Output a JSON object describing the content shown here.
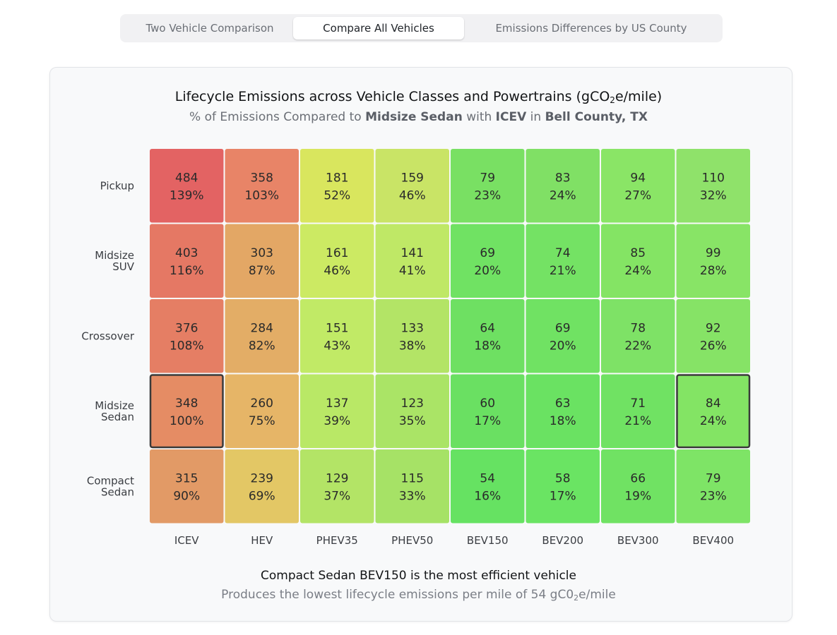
{
  "tabs": [
    {
      "label": "Two Vehicle Comparison",
      "active": false
    },
    {
      "label": "Compare All Vehicles",
      "active": true
    },
    {
      "label": "Emissions Differences by US County",
      "active": false
    }
  ],
  "header": {
    "title_main": "Lifecycle Emissions across Vehicle Classes and Powertrains (gCO",
    "title_sub": "2",
    "title_tail": "e/mile)",
    "subtitle_prefix": "% of Emissions Compared to ",
    "baseline_class": "Midsize Sedan",
    "subtitle_with": " with ",
    "baseline_powertrain": "ICEV",
    "subtitle_in": " in ",
    "county": "Bell County, TX"
  },
  "summary": {
    "headline": "Compact Sedan BEV150 is the most efficient vehicle",
    "detail_prefix": "Produces the lowest lifecycle emissions per mile of 54 gC0",
    "detail_sub": "2",
    "detail_suffix": "e/mile"
  },
  "chart_data": {
    "type": "heatmap",
    "title": "Lifecycle Emissions across Vehicle Classes and Powertrains (gCO2e/mile)",
    "subtitle": "% of Emissions Compared to Midsize Sedan with ICEV in Bell County, TX",
    "columns": [
      "ICEV",
      "HEV",
      "PHEV35",
      "PHEV50",
      "BEV150",
      "BEV200",
      "BEV300",
      "BEV400"
    ],
    "rows": [
      [
        "Pickup"
      ],
      [
        "Midsize",
        "SUV"
      ],
      [
        "Crossover"
      ],
      [
        "Midsize",
        "Sedan"
      ],
      [
        "Compact",
        "Sedan"
      ]
    ],
    "values": [
      [
        484,
        358,
        181,
        159,
        79,
        83,
        94,
        110
      ],
      [
        403,
        303,
        161,
        141,
        69,
        74,
        85,
        99
      ],
      [
        376,
        284,
        151,
        133,
        64,
        69,
        78,
        92
      ],
      [
        348,
        260,
        137,
        123,
        60,
        63,
        71,
        84
      ],
      [
        315,
        239,
        129,
        115,
        54,
        58,
        66,
        79
      ]
    ],
    "percents": [
      [
        "139%",
        "103%",
        "52%",
        "46%",
        "23%",
        "24%",
        "27%",
        "32%"
      ],
      [
        "116%",
        "87%",
        "46%",
        "41%",
        "20%",
        "21%",
        "24%",
        "28%"
      ],
      [
        "108%",
        "82%",
        "43%",
        "38%",
        "18%",
        "20%",
        "22%",
        "26%"
      ],
      [
        "100%",
        "75%",
        "39%",
        "35%",
        "17%",
        "18%",
        "21%",
        "24%"
      ],
      [
        "90%",
        "69%",
        "37%",
        "33%",
        "16%",
        "17%",
        "19%",
        "23%"
      ]
    ],
    "colors": [
      [
        "#e36363",
        "#e88467",
        "#d9e65e",
        "#c9e466",
        "#79e063",
        "#80e065",
        "#8ae566",
        "#8fe26a"
      ],
      [
        "#e57864",
        "#e3a765",
        "#ccea63",
        "#bfe866",
        "#70e263",
        "#74e264",
        "#84e464",
        "#88e466"
      ],
      [
        "#e57e64",
        "#e3ad66",
        "#c1ea66",
        "#b3e466",
        "#6ee062",
        "#70e263",
        "#7ee266",
        "#86e366"
      ],
      [
        "#e58c64",
        "#e6b567",
        "#b9e866",
        "#aae466",
        "#6ae062",
        "#6ae262",
        "#70e263",
        "#83e464"
      ],
      [
        "#e29a66",
        "#e3c765",
        "#b3e466",
        "#a6e266",
        "#66e262",
        "#6ae463",
        "#70e263",
        "#7ee466"
      ]
    ],
    "highlighted": [
      [
        3,
        0
      ],
      [
        3,
        7
      ]
    ],
    "unit": "gCO2e/mile"
  }
}
